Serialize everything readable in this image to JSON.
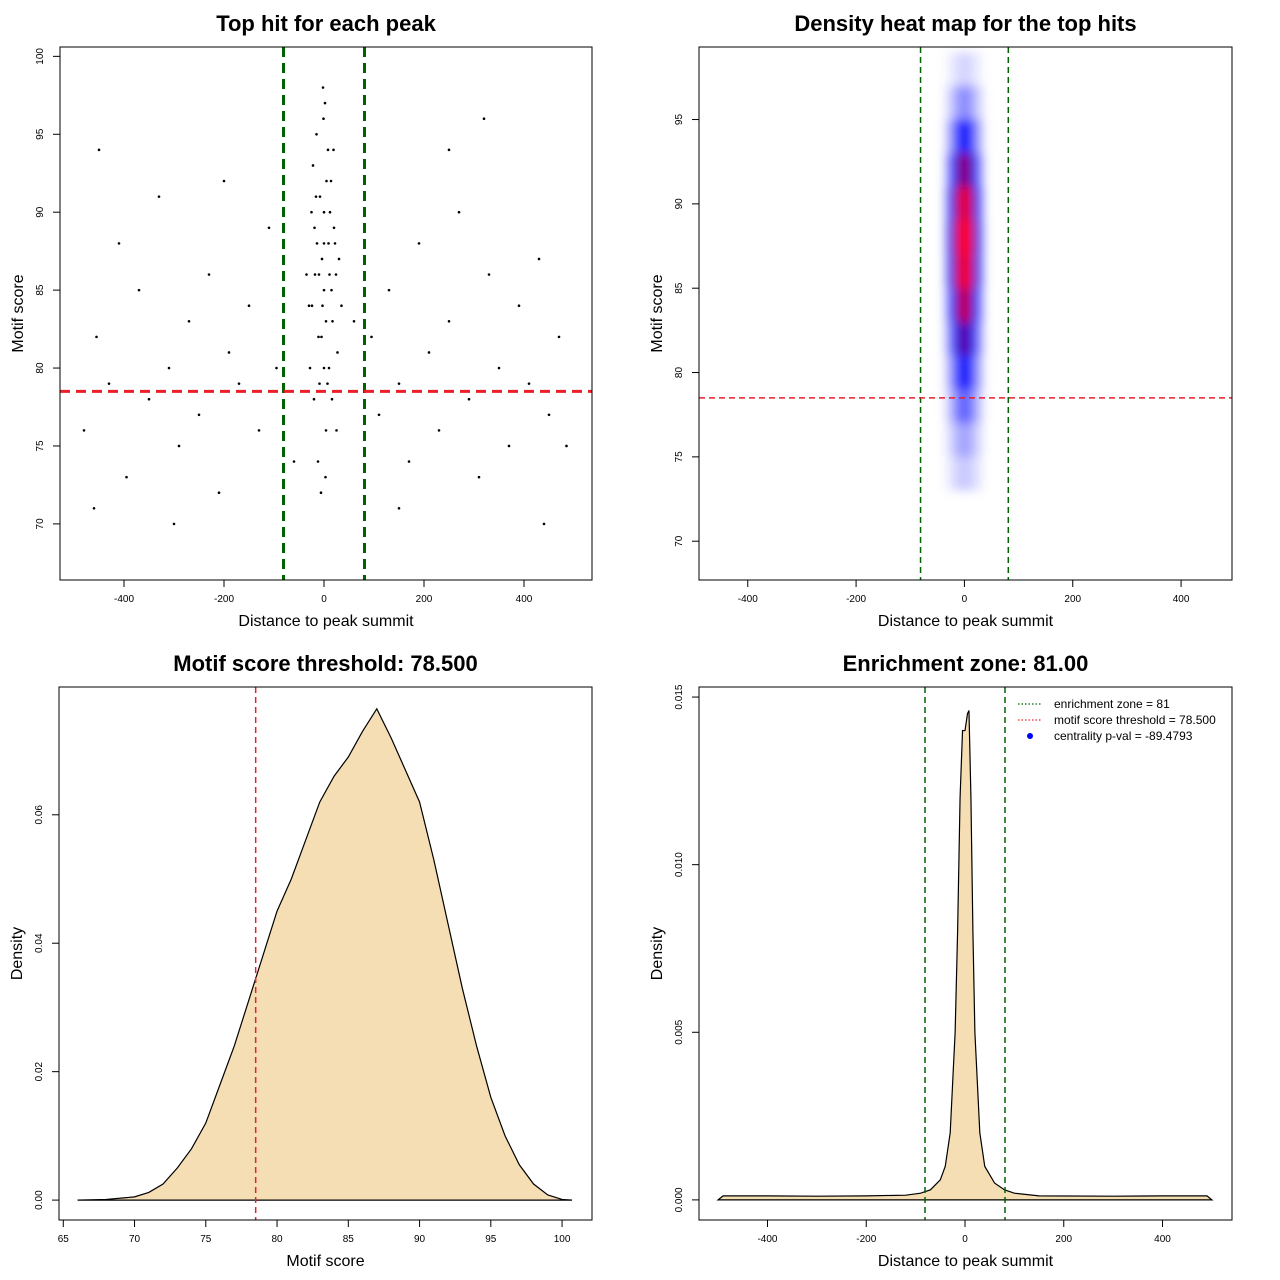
{
  "chart_data": [
    {
      "type": "scatter",
      "title": "Top hit for each peak",
      "x_label": "Distance to peak summit",
      "y_label": "Motif score",
      "color": "#000000",
      "x": [
        -480,
        -455,
        -430,
        -410,
        -395,
        -370,
        -350,
        -330,
        -310,
        -290,
        -270,
        -250,
        -230,
        -210,
        -190,
        -170,
        -150,
        -130,
        -110,
        -95,
        -450,
        -300,
        -200,
        -460,
        95,
        110,
        130,
        150,
        170,
        190,
        210,
        230,
        250,
        270,
        290,
        310,
        330,
        350,
        370,
        390,
        410,
        430,
        450,
        470,
        485,
        320,
        440,
        250,
        150,
        -60,
        60,
        -30,
        -25,
        -20,
        -15,
        -10,
        -5,
        0,
        5,
        10,
        15,
        20,
        25,
        30,
        -28,
        -22,
        -18,
        -12,
        -8,
        -3,
        2,
        7,
        12,
        17,
        22,
        27,
        -35,
        35,
        -6,
        4,
        -2,
        8,
        -14,
        14,
        -24,
        24,
        0,
        0,
        0,
        -4,
        4,
        -9,
        9,
        -16,
        16,
        3,
        -1,
        11,
        -11,
        19,
        -19
      ],
      "values": [
        76,
        82,
        79,
        88,
        73,
        85,
        78,
        91,
        80,
        75,
        83,
        77,
        86,
        72,
        81,
        79,
        84,
        76,
        89,
        80,
        94,
        70,
        92,
        71,
        82,
        77,
        85,
        79,
        74,
        88,
        81,
        76,
        83,
        90,
        78,
        73,
        86,
        80,
        75,
        84,
        79,
        87,
        77,
        82,
        75,
        96,
        70,
        94,
        71,
        74,
        83,
        84,
        90,
        78,
        95,
        86,
        82,
        88,
        92,
        80,
        85,
        89,
        76,
        87,
        80,
        93,
        86,
        74,
        91,
        84,
        97,
        79,
        90,
        83,
        88,
        81,
        86,
        84,
        72,
        76,
        98,
        94,
        88,
        92,
        84,
        86,
        80,
        85,
        90,
        87,
        83,
        79,
        88,
        91,
        78,
        73,
        96,
        86,
        82,
        94,
        89
      ],
      "xlim": [
        -528,
        536
      ],
      "ylim": [
        66.4,
        100.6
      ],
      "xticks": [
        -400,
        -200,
        0,
        200,
        400
      ],
      "yticks": [
        70,
        75,
        80,
        85,
        90,
        95,
        100
      ],
      "vlines": [
        {
          "value": -81,
          "color": "#006400"
        },
        {
          "value": 81,
          "color": "#006400"
        }
      ],
      "hlines": [
        {
          "value": 78.5,
          "color": "#e8202a"
        }
      ]
    },
    {
      "type": "heatmap",
      "title": "Density heat map for the top hits",
      "x_label": "Distance to peak summit",
      "y_label": "Motif score",
      "colormap": [
        "#ffffff",
        "#0000ff",
        "#ff0000"
      ],
      "x": [
        -30,
        -20,
        -10,
        0,
        10,
        20,
        30
      ],
      "y": [
        74,
        76,
        78,
        80,
        82,
        84,
        86,
        88,
        90,
        92,
        94,
        96,
        98
      ],
      "z": [
        [
          0.03,
          0.06,
          0.09,
          0.1,
          0.09,
          0.06,
          0.03
        ],
        [
          0.05,
          0.1,
          0.15,
          0.18,
          0.15,
          0.1,
          0.05
        ],
        [
          0.08,
          0.17,
          0.26,
          0.3,
          0.26,
          0.17,
          0.08
        ],
        [
          0.11,
          0.25,
          0.38,
          0.45,
          0.38,
          0.25,
          0.11
        ],
        [
          0.16,
          0.34,
          0.53,
          0.62,
          0.53,
          0.34,
          0.16
        ],
        [
          0.2,
          0.44,
          0.68,
          0.8,
          0.68,
          0.44,
          0.2
        ],
        [
          0.24,
          0.52,
          0.81,
          0.95,
          0.81,
          0.52,
          0.24
        ],
        [
          0.25,
          0.55,
          0.85,
          1,
          0.85,
          0.55,
          0.25
        ],
        [
          0.23,
          0.5,
          0.77,
          0.9,
          0.77,
          0.5,
          0.23
        ],
        [
          0.18,
          0.39,
          0.6,
          0.7,
          0.6,
          0.39,
          0.18
        ],
        [
          0.11,
          0.25,
          0.38,
          0.45,
          0.38,
          0.25,
          0.11
        ],
        [
          0.06,
          0.12,
          0.19,
          0.22,
          0.19,
          0.12,
          0.06
        ],
        [
          0.02,
          0.04,
          0.07,
          0.08,
          0.07,
          0.04,
          0.02
        ]
      ],
      "xlim": [
        -490,
        494
      ],
      "ylim": [
        67.7,
        99.3
      ],
      "xticks": [
        -400,
        -200,
        0,
        200,
        400
      ],
      "yticks": [
        70,
        75,
        80,
        85,
        90,
        95
      ],
      "vlines": [
        {
          "value": -81,
          "color": "#006400"
        },
        {
          "value": 81,
          "color": "#006400"
        }
      ],
      "hlines": [
        {
          "value": 78.5,
          "color": "#e8202a"
        }
      ]
    },
    {
      "type": "area",
      "title": "Motif score threshold: 78.500",
      "x_label": "Motif score",
      "y_label": "Density",
      "color": "#f5deb3",
      "x": [
        66,
        68,
        70,
        71,
        72,
        73,
        74,
        75,
        76,
        77,
        78,
        79,
        80,
        81,
        82,
        83,
        84,
        85,
        86,
        87,
        88,
        89,
        90,
        91,
        92,
        93,
        94,
        95,
        96,
        97,
        98,
        99,
        100,
        100.7
      ],
      "values": [
        0,
        0.0001,
        0.0005,
        0.0012,
        0.0025,
        0.005,
        0.008,
        0.012,
        0.018,
        0.024,
        0.031,
        0.038,
        0.045,
        0.05,
        0.056,
        0.062,
        0.066,
        0.069,
        0.073,
        0.0765,
        0.072,
        0.067,
        0.062,
        0.053,
        0.043,
        0.033,
        0.024,
        0.016,
        0.01,
        0.0055,
        0.0025,
        0.0008,
        0.0001,
        0
      ],
      "xlim": [
        64.7,
        102.1
      ],
      "ylim": [
        -0.0031,
        0.0799
      ],
      "xticks": [
        65,
        70,
        75,
        80,
        85,
        90,
        95,
        100
      ],
      "yticks": [
        {
          "value": 0,
          "label": "0.00"
        },
        {
          "value": 0.02,
          "label": "0.02"
        },
        {
          "value": 0.04,
          "label": "0.04"
        },
        {
          "value": 0.06,
          "label": "0.06"
        }
      ],
      "vlines": [
        {
          "value": 78.5,
          "color": "#e8202a"
        }
      ]
    },
    {
      "type": "area",
      "title": "Enrichment zone: 81.00",
      "x_label": "Distance to peak summit",
      "y_label": "Density",
      "color": "#f5deb3",
      "x": [
        -500,
        -490,
        -400,
        -300,
        -200,
        -120,
        -90,
        -70,
        -50,
        -40,
        -30,
        -20,
        -15,
        -10,
        -5,
        0,
        5,
        8,
        12,
        16,
        20,
        30,
        40,
        60,
        80,
        100,
        150,
        300,
        400,
        490,
        500
      ],
      "values": [
        0,
        0.00012,
        0.00012,
        0.00011,
        0.00012,
        0.00014,
        0.0002,
        0.0003,
        0.0006,
        0.001,
        0.002,
        0.005,
        0.008,
        0.012,
        0.014,
        0.014,
        0.0145,
        0.0146,
        0.012,
        0.008,
        0.005,
        0.002,
        0.001,
        0.0005,
        0.0003,
        0.0002,
        0.00012,
        0.00011,
        0.00012,
        0.00012,
        0
      ],
      "xlim": [
        -538.7,
        540.7
      ],
      "ylim": [
        -0.0006,
        0.0153
      ],
      "xticks": [
        -400,
        -200,
        0,
        200,
        400
      ],
      "yticks": [
        {
          "value": 0,
          "label": "0.000"
        },
        {
          "value": 0.005,
          "label": "0.005"
        },
        {
          "value": 0.01,
          "label": "0.010"
        },
        {
          "value": 0.015,
          "label": "0.015"
        }
      ],
      "vlines": [
        {
          "value": -81,
          "color": "#006400"
        },
        {
          "value": 81,
          "color": "#006400"
        }
      ],
      "legend": [
        {
          "label": "enrichment zone = 81",
          "color": "#006400",
          "style": "line"
        },
        {
          "label": "motif score threshold = 78.500",
          "color": "#e8202a",
          "style": "line"
        },
        {
          "label": "centrality p-val = -89.4793",
          "color": "#0000ff",
          "style": "point"
        }
      ]
    }
  ]
}
